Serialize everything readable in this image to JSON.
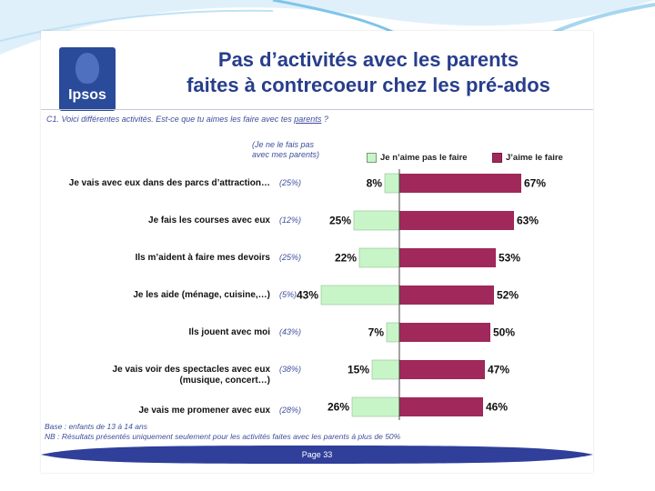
{
  "header": {
    "brand": "Ipsos",
    "title_line1": "Pas d’activités avec les parents",
    "title_line2": "faites à contrecoeur chez les pré-ados"
  },
  "question": {
    "prefix": "C1. Voici différentes activités. Est-ce que tu aimes les faire avec tes ",
    "underlined": "parents",
    "suffix": " ?"
  },
  "note_header": {
    "line1": "(Je ne le fais pas",
    "line2": "avec mes parents)"
  },
  "legend": {
    "dislike": "Je n’aime pas le faire",
    "like": "J’aime le faire"
  },
  "colors": {
    "dislike": "#c8f5c8",
    "like": "#a0285a",
    "title": "#283e8c",
    "footer": "#2f3f9a"
  },
  "rows": [
    {
      "label1": "Je vais avec eux dans des parcs d’attraction…",
      "label2": "",
      "note": "(25%)"
    },
    {
      "label1": "Je fais les courses avec eux",
      "label2": "",
      "note": "(12%)"
    },
    {
      "label1": "Ils m’aident à faire mes devoirs",
      "label2": "",
      "note": "(25%)"
    },
    {
      "label1": "Je les aide (ménage, cuisine,…)",
      "label2": "",
      "note": "(5%)"
    },
    {
      "label1": "Ils jouent avec moi",
      "label2": "",
      "note": "(43%)"
    },
    {
      "label1": "Je vais voir des spectacles avec eux",
      "label2": "(musique, concert…)",
      "note": "(38%)"
    },
    {
      "label1": "Je vais me promener avec eux",
      "label2": "",
      "note": "(28%)"
    }
  ],
  "chart_data": {
    "type": "bar",
    "orientation": "horizontal-diverging",
    "categories": [
      "Je vais avec eux dans des parcs d’attraction…",
      "Je fais les courses avec eux",
      "Ils m’aident à faire mes devoirs",
      "Je les aide (ménage, cuisine,…)",
      "Ils jouent avec moi",
      "Je vais voir des spectacles avec eux (musique, concert…)",
      "Je vais me promener avec eux"
    ],
    "series": [
      {
        "name": "Je n’aime pas le faire",
        "values": [
          8,
          25,
          22,
          43,
          7,
          15,
          26
        ],
        "labels": [
          "8%",
          "25%",
          "22%",
          "43%",
          "7%",
          "15%",
          "26%"
        ]
      },
      {
        "name": "J’aime le faire",
        "values": [
          67,
          63,
          53,
          52,
          50,
          47,
          46
        ],
        "labels": [
          "67%",
          "63%",
          "53%",
          "52%",
          "50%",
          "47%",
          "46%"
        ]
      }
    ],
    "unit": "%"
  },
  "footer": {
    "base": "Base : enfants de 13 à 14 ans",
    "nb": "NB : Résultats présentés uniquement seulement pour les activités faites avec les parents à plus de 50%",
    "page": "Page 33"
  }
}
